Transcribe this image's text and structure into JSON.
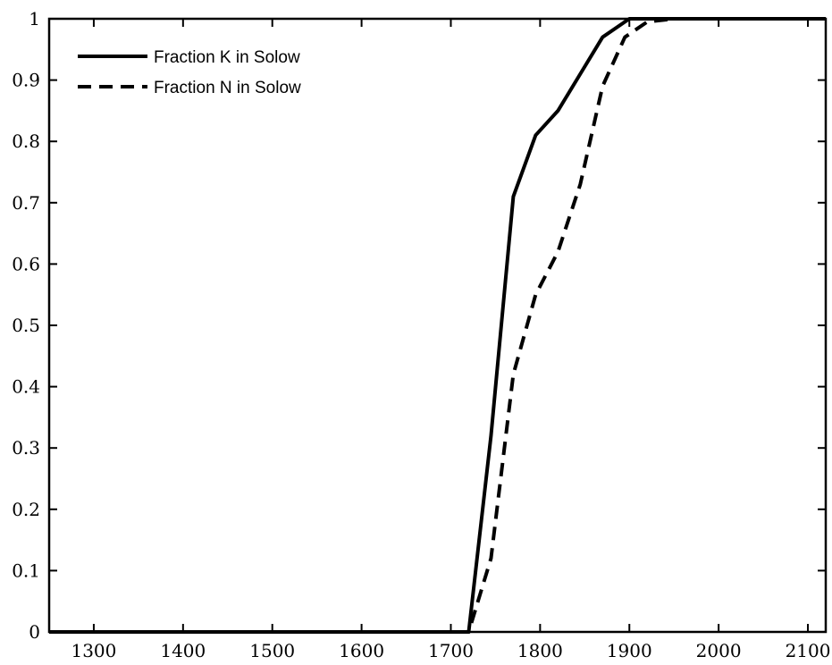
{
  "chart_data": {
    "type": "line",
    "title": "",
    "xlabel": "",
    "ylabel": "",
    "xlim": [
      1250,
      2120
    ],
    "ylim": [
      0,
      1
    ],
    "xticks": [
      1300,
      1400,
      1500,
      1600,
      1700,
      1800,
      1900,
      2000,
      2100
    ],
    "yticks": [
      0,
      0.1,
      0.2,
      0.3,
      0.4,
      0.5,
      0.6,
      0.7,
      0.8,
      0.9,
      1
    ],
    "grid": false,
    "legend_position": "top-left",
    "series": [
      {
        "name": "Fraction K in Solow",
        "style": "solid",
        "color": "#000000",
        "x": [
          1250,
          1720,
          1745,
          1770,
          1795,
          1820,
          1845,
          1870,
          1900,
          1930,
          2120
        ],
        "y": [
          0,
          0,
          0.32,
          0.71,
          0.81,
          0.85,
          0.91,
          0.97,
          1.0,
          1.0,
          1.0
        ]
      },
      {
        "name": "Fraction N in Solow",
        "style": "dashed",
        "color": "#000000",
        "x": [
          1250,
          1720,
          1745,
          1770,
          1795,
          1820,
          1845,
          1870,
          1895,
          1920,
          1950,
          2120
        ],
        "y": [
          0,
          0,
          0.12,
          0.42,
          0.55,
          0.62,
          0.73,
          0.89,
          0.97,
          0.995,
          1.0,
          1.0
        ]
      }
    ]
  }
}
